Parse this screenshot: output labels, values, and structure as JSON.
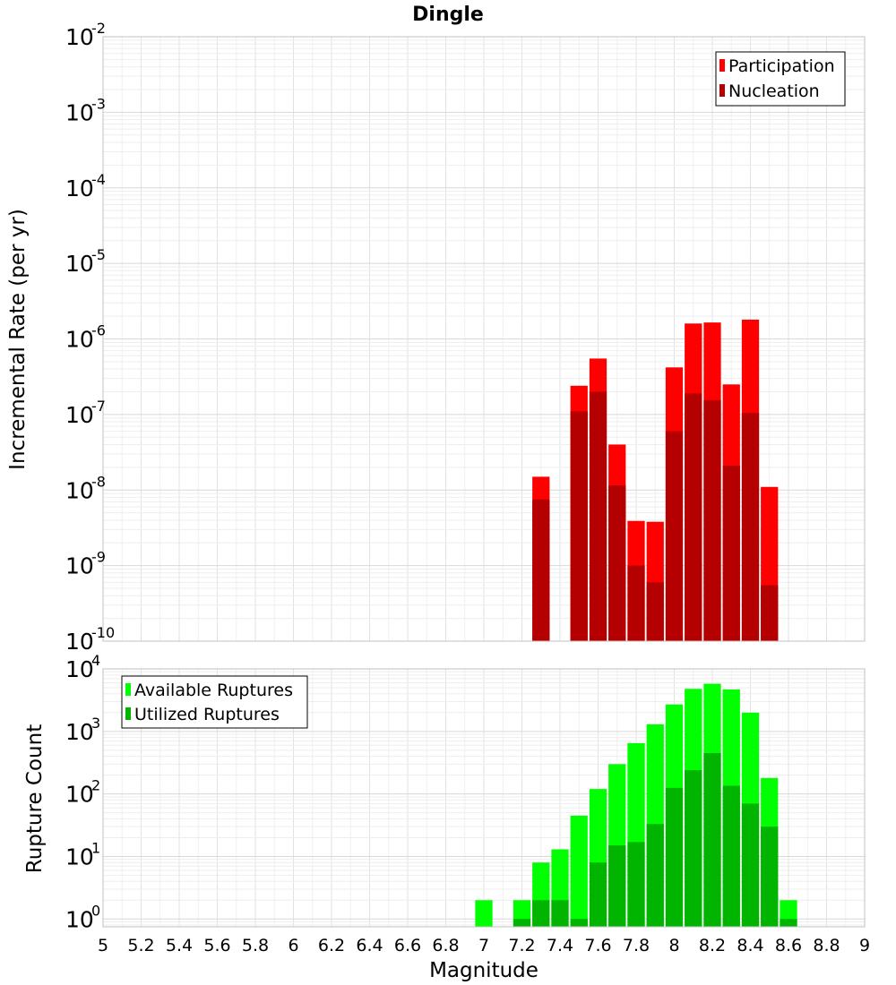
{
  "chart_data": [
    {
      "type": "bar",
      "title": "Dingle",
      "xlabel": "",
      "ylabel": "Incremental Rate (per yr)",
      "yscale": "log",
      "xlim": [
        5,
        9
      ],
      "ylim": [
        1e-10,
        0.01
      ],
      "y_tick_exponents": [
        "-2",
        "-3",
        "-4",
        "-5",
        "-6",
        "-7",
        "-8",
        "-9",
        "-10"
      ],
      "legend": {
        "position": "top-right",
        "entries": [
          "Participation",
          "Nucleation"
        ]
      },
      "colors": {
        "Participation": "#ff0000",
        "Nucleation": "#b40000"
      },
      "bar_width": 0.1,
      "x": [
        7.3,
        7.5,
        7.6,
        7.7,
        7.8,
        7.9,
        8.0,
        8.1,
        8.2,
        8.3,
        8.4,
        8.5
      ],
      "series": [
        {
          "name": "Participation",
          "values": [
            1.5e-08,
            2.4e-07,
            5.5e-07,
            4e-08,
            3.9e-09,
            3.8e-09,
            4.2e-07,
            1.6e-06,
            1.65e-06,
            2.5e-07,
            1.8e-06,
            1.1e-08
          ]
        },
        {
          "name": "Nucleation",
          "values": [
            7.5e-09,
            1.1e-07,
            2e-07,
            1.15e-08,
            1e-09,
            6e-10,
            6e-08,
            1.9e-07,
            1.55e-07,
            2.1e-08,
            1.05e-07,
            5.5e-10
          ]
        }
      ],
      "grid": true
    },
    {
      "type": "bar",
      "title": "",
      "xlabel": "Magnitude",
      "ylabel": "Rupture Count",
      "yscale": "log",
      "xlim": [
        5,
        9
      ],
      "ylim": [
        0.75,
        10000
      ],
      "x_ticks": [
        "5",
        "5.2",
        "5.4",
        "5.6",
        "5.8",
        "6",
        "6.2",
        "6.4",
        "6.6",
        "6.8",
        "7",
        "7.2",
        "7.4",
        "7.6",
        "7.8",
        "8",
        "8.2",
        "8.4",
        "8.6",
        "8.8",
        "9"
      ],
      "y_tick_exponents": [
        "4",
        "3",
        "2",
        "1",
        "0"
      ],
      "legend": {
        "position": "top-left",
        "entries": [
          "Available Ruptures",
          "Utilized Ruptures"
        ]
      },
      "colors": {
        "Available Ruptures": "#00ff00",
        "Utilized Ruptures": "#00b400"
      },
      "bar_width": 0.1,
      "x": [
        7.0,
        7.2,
        7.3,
        7.4,
        7.5,
        7.6,
        7.7,
        7.8,
        7.9,
        8.0,
        8.1,
        8.2,
        8.3,
        8.4,
        8.5,
        8.6
      ],
      "series": [
        {
          "name": "Available Ruptures",
          "values": [
            2,
            2,
            8,
            13,
            45,
            120,
            300,
            650,
            1300,
            2700,
            4800,
            5800,
            4700,
            2000,
            180,
            2
          ]
        },
        {
          "name": "Utilized Ruptures",
          "values": [
            0,
            1,
            2,
            2,
            1,
            8,
            15,
            17,
            33,
            125,
            240,
            450,
            135,
            70,
            30,
            1
          ]
        }
      ],
      "grid": true
    }
  ]
}
